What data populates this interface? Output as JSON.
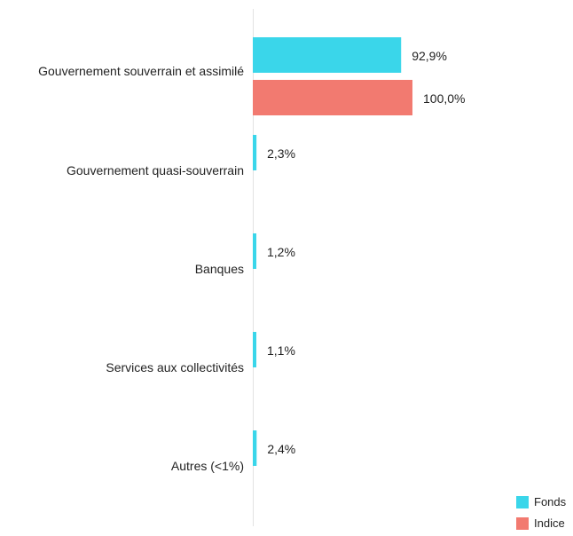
{
  "chart_data": {
    "type": "bar",
    "orientation": "horizontal",
    "categories": [
      "Gouvernement souverrain et assimilé",
      "Gouvernement quasi-souverrain",
      "Banques",
      "Services aux collectivités",
      "Autres (<1%)"
    ],
    "series": [
      {
        "name": "Fonds",
        "color": "#3ad6ea",
        "values": [
          92.9,
          2.3,
          1.2,
          1.1,
          2.4
        ],
        "labels": [
          "92,9%",
          "2,3%",
          "1,2%",
          "1,1%",
          "2,4%"
        ]
      },
      {
        "name": "Indice",
        "color": "#f27a70",
        "values": [
          100.0,
          null,
          null,
          null,
          null
        ],
        "labels": [
          "100,0%",
          "",
          "",
          "",
          ""
        ]
      }
    ],
    "xlim": [
      0,
      100
    ],
    "grid": false,
    "legend": "bottom-right",
    "title": "",
    "xlabel": "",
    "ylabel": ""
  }
}
